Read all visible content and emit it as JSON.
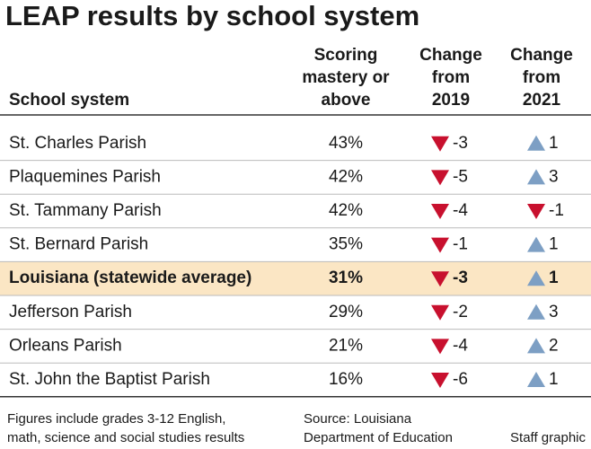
{
  "title": "LEAP results by school system",
  "table": {
    "headers": [
      [
        "School system"
      ],
      [
        "Scoring",
        "mastery or",
        "above"
      ],
      [
        "Change",
        "from",
        "2019"
      ],
      [
        "Change",
        "from",
        "2021"
      ]
    ],
    "rows": [
      [
        "St. Charles Parish",
        "43%",
        "-3",
        "1"
      ],
      [
        "Plaquemines Parish",
        "42%",
        "-5",
        "3"
      ],
      [
        "St. Tammany Parish",
        "42%",
        "-4",
        "-1"
      ],
      [
        "St. Bernard Parish",
        "35%",
        "-1",
        "1"
      ],
      [
        "Louisiana (statewide average)",
        "31%",
        "-3",
        "1"
      ],
      [
        "Jefferson Parish",
        "29%",
        "-2",
        "3"
      ],
      [
        "Orleans Parish",
        "21%",
        "-4",
        "2"
      ],
      [
        "St. John the Baptist Parish",
        "16%",
        "-6",
        "1"
      ]
    ],
    "highlight_row": 4,
    "highlight_color": "#fbe6c4"
  },
  "footer": {
    "note": [
      "Figures include grades 3-12 English,",
      "math, science and social studies results"
    ],
    "source": [
      "Source: Louisiana",
      "Department of Education"
    ],
    "credit": "Staff graphic"
  }
}
